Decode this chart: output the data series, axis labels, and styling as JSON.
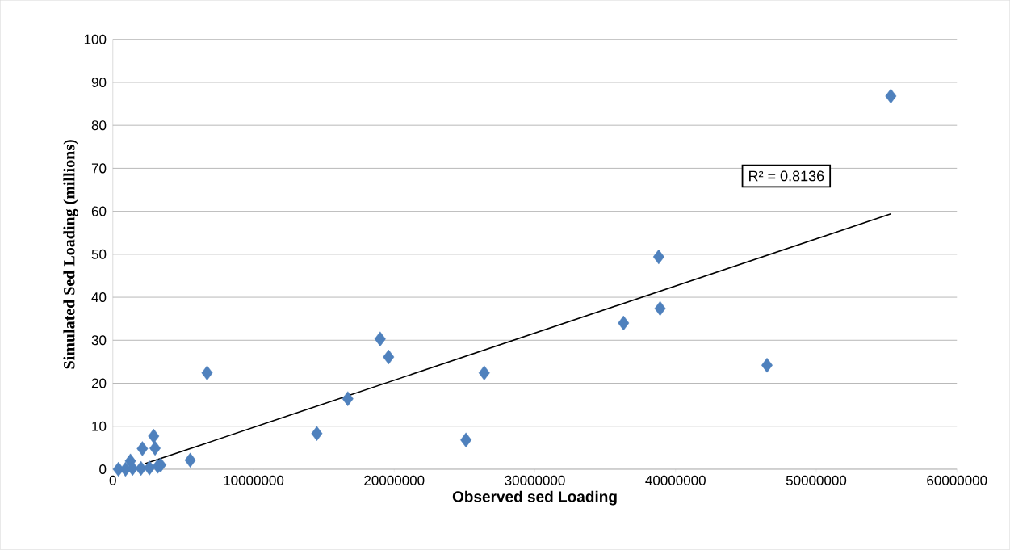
{
  "chart_data": {
    "type": "scatter",
    "xlabel": "Observed sed Loading",
    "ylabel": "Simulated Sed Loading (millions)",
    "annotations": [
      "R² = 0.8136"
    ],
    "series": [
      {
        "color": "#4f81bd",
        "marker": "diamond",
        "x": [
          55300000,
          38800000,
          38900000,
          36300000,
          46500000,
          26400000,
          25100000,
          19000000,
          19600000,
          16700000,
          14500000,
          6700000,
          5500000,
          2900000,
          2100000,
          3000000,
          1250000,
          400000,
          900000,
          1400000,
          2000000,
          2600000,
          3200000,
          3400000
        ],
        "values": [
          86.8,
          49.4,
          37.4,
          34.0,
          24.2,
          22.4,
          6.8,
          30.3,
          26.1,
          16.4,
          8.3,
          22.4,
          2.1,
          7.7,
          4.8,
          4.9,
          1.9,
          0,
          0,
          0.2,
          0.2,
          0.3,
          0.7,
          1.0
        ]
      },
      {
        "type": "line",
        "color": "#000000",
        "marker": "none",
        "x": [
          2300000,
          55300000
        ],
        "values": [
          1.3,
          59.4
        ]
      }
    ],
    "xlim": [
      0,
      60000000
    ],
    "xticks": [
      0,
      10000000,
      20000000,
      30000000,
      40000000,
      50000000,
      60000000
    ],
    "ylim": [
      0,
      100
    ],
    "yticks": [
      0,
      10,
      20,
      30,
      40,
      50,
      60,
      70,
      80,
      90,
      100
    ],
    "grid": "y"
  }
}
